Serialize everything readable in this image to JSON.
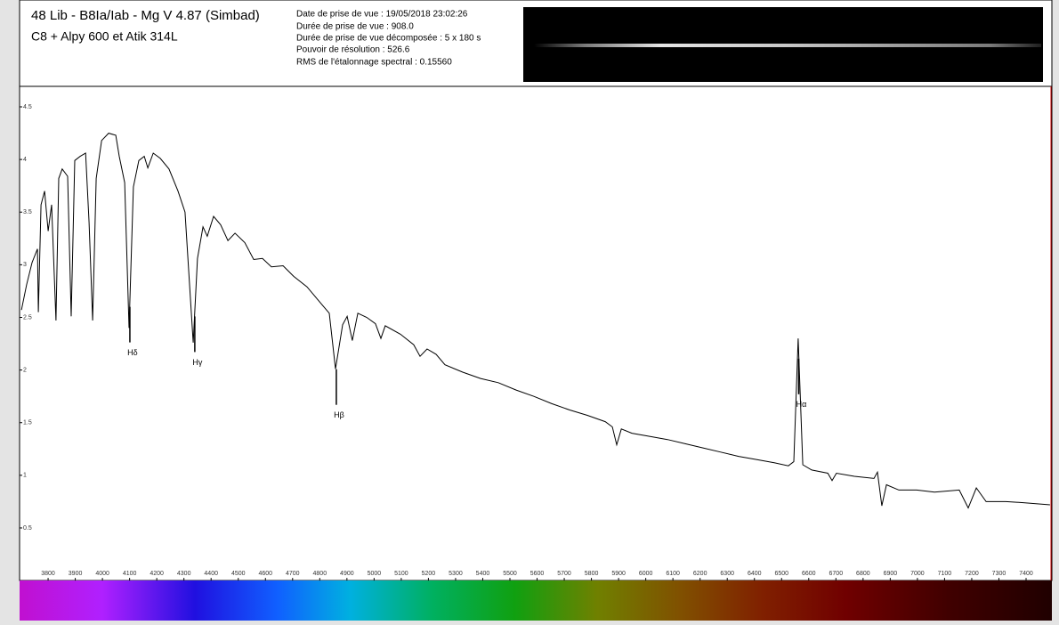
{
  "header": {
    "title": "48 Lib - B8Ia/Iab - Mg V 4.87 (Simbad)",
    "subtitle": "C8 + Alpy 600 et Atik 314L",
    "info": [
      "Date de prise de vue : 19/05/2018 23:02:26",
      "Durée de prise de vue : 908.0",
      "Durée de prise de vue décomposée : 5 x 180 s",
      "Pouvoir de résolution : 526.6",
      "RMS de l'étalonnage spectral : 0.15560"
    ]
  },
  "chart_data": {
    "type": "line",
    "color": "#000000",
    "x": [
      3702,
      3721,
      3741,
      3761,
      3764,
      3774,
      3787,
      3800,
      3813,
      3829,
      3839,
      3852,
      3872,
      3885,
      3898,
      3918,
      3938,
      3951,
      3964,
      3977,
      3997,
      4023,
      4049,
      4062,
      4082,
      4098,
      4114,
      4134,
      4154,
      4167,
      4187,
      4213,
      4245,
      4278,
      4304,
      4334,
      4350,
      4370,
      4386,
      4409,
      4435,
      4462,
      4488,
      4524,
      4557,
      4589,
      4622,
      4665,
      4704,
      4753,
      4802,
      4835,
      4858,
      4884,
      4901,
      4920,
      4940,
      4973,
      5005,
      5025,
      5041,
      5097,
      5146,
      5169,
      5195,
      5228,
      5261,
      5326,
      5392,
      5457,
      5523,
      5588,
      5654,
      5720,
      5785,
      5851,
      5877,
      5893,
      5910,
      5949,
      6014,
      6080,
      6145,
      6211,
      6276,
      6342,
      6407,
      6473,
      6525,
      6545,
      6561,
      6578,
      6611,
      6670,
      6686,
      6702,
      6768,
      6840,
      6853,
      6869,
      6886,
      6932,
      6997,
      7063,
      7154,
      7187,
      7217,
      7253,
      7325,
      7390,
      7488
    ],
    "values": [
      2.57,
      2.81,
      3.02,
      3.15,
      2.55,
      3.57,
      3.7,
      3.32,
      3.57,
      2.47,
      3.82,
      3.91,
      3.84,
      2.51,
      3.99,
      4.03,
      4.06,
      3.4,
      2.47,
      3.82,
      4.18,
      4.25,
      4.23,
      4.03,
      3.78,
      2.4,
      3.74,
      3.99,
      4.03,
      3.92,
      4.06,
      4.01,
      3.91,
      3.7,
      3.5,
      2.26,
      3.06,
      3.36,
      3.27,
      3.46,
      3.38,
      3.23,
      3.3,
      3.21,
      3.05,
      3.06,
      2.98,
      2.99,
      2.89,
      2.79,
      2.64,
      2.54,
      2.01,
      2.43,
      2.51,
      2.28,
      2.54,
      2.5,
      2.44,
      2.3,
      2.42,
      2.34,
      2.24,
      2.13,
      2.2,
      2.15,
      2.05,
      1.98,
      1.92,
      1.88,
      1.81,
      1.75,
      1.68,
      1.62,
      1.57,
      1.51,
      1.46,
      1.29,
      1.44,
      1.4,
      1.37,
      1.34,
      1.3,
      1.26,
      1.22,
      1.18,
      1.15,
      1.12,
      1.09,
      1.13,
      2.3,
      1.1,
      1.05,
      1.02,
      0.95,
      1.02,
      0.99,
      0.97,
      1.03,
      0.71,
      0.91,
      0.86,
      0.86,
      0.84,
      0.86,
      0.69,
      0.88,
      0.75,
      0.75,
      0.74,
      0.72
    ],
    "xlim": [
      3695,
      7495
    ],
    "ylim": [
      0,
      4.7
    ],
    "xticks": [
      3800,
      3900,
      4000,
      4100,
      4200,
      4300,
      4400,
      4500,
      4600,
      4700,
      4800,
      4900,
      5000,
      5100,
      5200,
      5300,
      5400,
      5500,
      5600,
      5700,
      5800,
      5900,
      6000,
      6100,
      6200,
      6300,
      6400,
      6500,
      6600,
      6700,
      6800,
      6900,
      7000,
      7100,
      7200,
      7300,
      7400
    ],
    "yticks": [
      0.5,
      1,
      1.5,
      2,
      2.5,
      3,
      3.5,
      4,
      4.5
    ],
    "annotations": [
      {
        "text": "Hδ",
        "x": 4101
      },
      {
        "text": "Hγ",
        "x": 4340
      },
      {
        "text": "Hβ",
        "x": 4861
      },
      {
        "text": "Hα",
        "x": 6563
      }
    ]
  }
}
